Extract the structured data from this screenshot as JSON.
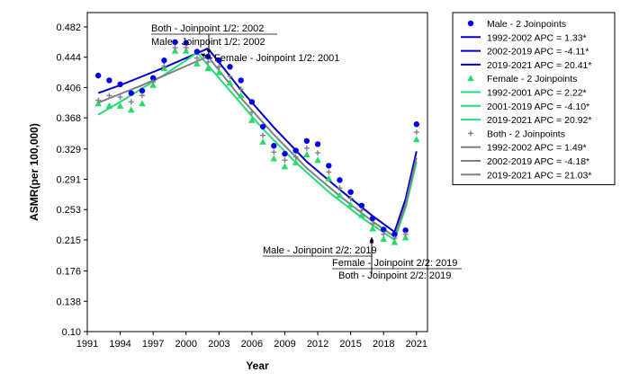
{
  "chart_data": {
    "type": "line",
    "xlabel": "Year",
    "ylabel": "ASMR(per 100,000)",
    "xlim": [
      1991,
      2022
    ],
    "ylim": [
      0.1,
      0.5
    ],
    "x_ticks": [
      "1991",
      "1994",
      "1997",
      "2000",
      "2003",
      "2006",
      "2009",
      "2012",
      "2015",
      "2018",
      "2021"
    ],
    "y_ticks": [
      "0.10",
      "0.138",
      "0.176",
      "0.215",
      "0.253",
      "0.291",
      "0.329",
      "0.368",
      "0.406",
      "0.444",
      "0.482"
    ],
    "grid": false,
    "legend_position": "right",
    "series": [
      {
        "name": "Male - 2 Joinpoints",
        "kind": "points",
        "marker": "circle",
        "color": "#0000ee",
        "points": [
          [
            1992,
            0.421
          ],
          [
            1993,
            0.415
          ],
          [
            1994,
            0.41
          ],
          [
            1995,
            0.399
          ],
          [
            1996,
            0.402
          ],
          [
            1997,
            0.418
          ],
          [
            1998,
            0.44
          ],
          [
            1999,
            0.463
          ],
          [
            2000,
            0.462
          ],
          [
            2001,
            0.451
          ],
          [
            2002,
            0.445
          ],
          [
            2003,
            0.44
          ],
          [
            2004,
            0.432
          ],
          [
            2005,
            0.415
          ],
          [
            2006,
            0.388
          ],
          [
            2007,
            0.357
          ],
          [
            2008,
            0.333
          ],
          [
            2009,
            0.323
          ],
          [
            2010,
            0.327
          ],
          [
            2011,
            0.339
          ],
          [
            2012,
            0.335
          ],
          [
            2013,
            0.308
          ],
          [
            2014,
            0.29
          ],
          [
            2015,
            0.275
          ],
          [
            2016,
            0.258
          ],
          [
            2017,
            0.242
          ],
          [
            2018,
            0.228
          ],
          [
            2019,
            0.222
          ],
          [
            2020,
            0.227
          ],
          [
            2021,
            0.36
          ]
        ]
      },
      {
        "name": "Female - 2 Joinpoints",
        "kind": "points",
        "marker": "triangle",
        "color": "#22dd66",
        "points": [
          [
            1992,
            0.386
          ],
          [
            1993,
            0.383
          ],
          [
            1994,
            0.383
          ],
          [
            1995,
            0.378
          ],
          [
            1996,
            0.386
          ],
          [
            1997,
            0.409
          ],
          [
            1998,
            0.43
          ],
          [
            1999,
            0.452
          ],
          [
            2000,
            0.452
          ],
          [
            2001,
            0.436
          ],
          [
            2002,
            0.43
          ],
          [
            2003,
            0.425
          ],
          [
            2004,
            0.412
          ],
          [
            2005,
            0.396
          ],
          [
            2006,
            0.365
          ],
          [
            2007,
            0.338
          ],
          [
            2008,
            0.317
          ],
          [
            2009,
            0.307
          ],
          [
            2010,
            0.312
          ],
          [
            2011,
            0.322
          ],
          [
            2012,
            0.315
          ],
          [
            2013,
            0.292
          ],
          [
            2014,
            0.271
          ],
          [
            2015,
            0.259
          ],
          [
            2016,
            0.246
          ],
          [
            2017,
            0.229
          ],
          [
            2018,
            0.216
          ],
          [
            2019,
            0.212
          ],
          [
            2020,
            0.218
          ],
          [
            2021,
            0.341
          ]
        ]
      },
      {
        "name": "Both - 2 Joinpoints",
        "kind": "points",
        "marker": "plus",
        "color": "#808080",
        "points": [
          [
            1992,
            0.39
          ],
          [
            1993,
            0.396
          ],
          [
            1994,
            0.394
          ],
          [
            1995,
            0.388
          ],
          [
            1996,
            0.396
          ],
          [
            1997,
            0.413
          ],
          [
            1998,
            0.433
          ],
          [
            1999,
            0.456
          ],
          [
            2000,
            0.456
          ],
          [
            2001,
            0.443
          ],
          [
            2002,
            0.438
          ],
          [
            2003,
            0.432
          ],
          [
            2004,
            0.42
          ],
          [
            2005,
            0.404
          ],
          [
            2006,
            0.375
          ],
          [
            2007,
            0.346
          ],
          [
            2008,
            0.325
          ],
          [
            2009,
            0.315
          ],
          [
            2010,
            0.319
          ],
          [
            2011,
            0.33
          ],
          [
            2012,
            0.324
          ],
          [
            2013,
            0.3
          ],
          [
            2014,
            0.28
          ],
          [
            2015,
            0.267
          ],
          [
            2016,
            0.252
          ],
          [
            2017,
            0.235
          ],
          [
            2018,
            0.222
          ],
          [
            2019,
            0.217
          ],
          [
            2020,
            0.222
          ],
          [
            2021,
            0.35
          ]
        ]
      }
    ],
    "fits": [
      {
        "name": "1992-2002 APC =  1.33*",
        "color": "#0000cc",
        "group": "male",
        "points": [
          [
            1992,
            0.399
          ],
          [
            1994,
            0.409
          ],
          [
            1996,
            0.42
          ],
          [
            1998,
            0.431
          ],
          [
            2000,
            0.443
          ],
          [
            2002,
            0.455
          ]
        ]
      },
      {
        "name": "2002-2019 APC = -4.11*",
        "color": "#0000cc",
        "group": "male",
        "points": [
          [
            2002,
            0.455
          ],
          [
            2005,
            0.403
          ],
          [
            2008,
            0.356
          ],
          [
            2011,
            0.313
          ],
          [
            2014,
            0.278
          ],
          [
            2017,
            0.245
          ],
          [
            2019,
            0.225
          ]
        ]
      },
      {
        "name": "2019-2021 APC = 20.41*",
        "color": "#0000cc",
        "group": "male",
        "points": [
          [
            2019,
            0.225
          ],
          [
            2020,
            0.266
          ],
          [
            2021,
            0.326
          ]
        ]
      },
      {
        "name": "1992-2001 APC =  2.22*",
        "color": "#22dd77",
        "group": "female",
        "points": [
          [
            1992,
            0.372
          ],
          [
            1994,
            0.388
          ],
          [
            1996,
            0.405
          ],
          [
            1998,
            0.422
          ],
          [
            2000,
            0.44
          ],
          [
            2001,
            0.45
          ]
        ]
      },
      {
        "name": "2001-2019 APC = -4.10*",
        "color": "#22dd77",
        "group": "female",
        "points": [
          [
            2001,
            0.45
          ],
          [
            2004,
            0.402
          ],
          [
            2007,
            0.354
          ],
          [
            2010,
            0.312
          ],
          [
            2013,
            0.275
          ],
          [
            2016,
            0.243
          ],
          [
            2019,
            0.215
          ]
        ]
      },
      {
        "name": "2019-2021 APC = 20.92*",
        "color": "#22dd77",
        "group": "female",
        "points": [
          [
            2019,
            0.215
          ],
          [
            2020,
            0.255
          ],
          [
            2021,
            0.313
          ]
        ]
      },
      {
        "name": "1992-2002 APC =  1.49*",
        "color": "#808080",
        "group": "both",
        "points": [
          [
            1992,
            0.387
          ],
          [
            1994,
            0.398
          ],
          [
            1996,
            0.409
          ],
          [
            1998,
            0.421
          ],
          [
            2000,
            0.433
          ],
          [
            2002,
            0.445
          ]
        ]
      },
      {
        "name": "2002-2019 APC = -4.18*",
        "color": "#808080",
        "group": "both",
        "points": [
          [
            2002,
            0.445
          ],
          [
            2005,
            0.393
          ],
          [
            2008,
            0.347
          ],
          [
            2011,
            0.305
          ],
          [
            2014,
            0.27
          ],
          [
            2017,
            0.238
          ],
          [
            2019,
            0.219
          ]
        ]
      },
      {
        "name": "2019-2021 APC = 21.03*",
        "color": "#808080",
        "group": "both",
        "points": [
          [
            2019,
            0.219
          ],
          [
            2020,
            0.259
          ],
          [
            2021,
            0.318
          ]
        ]
      }
    ],
    "annotations": [
      {
        "text": "Both - Joinpoint 1/2:  2002",
        "x": 2002,
        "y": 0.455,
        "underline": true
      },
      {
        "text": "Male - Joinpoint 1/2:  2002",
        "x": 2002,
        "y": 0.455,
        "underline": false
      },
      {
        "text": "Female - Joinpoint 1/2:  2001",
        "x": 2001,
        "y": 0.45,
        "underline": false
      },
      {
        "text": "Male - Joinpoint 2/2:  2019",
        "x": 2019,
        "y": 0.222,
        "underline": true
      },
      {
        "text": "Female - Joinpoint 2/2:  2019",
        "x": 2019,
        "y": 0.215,
        "underline": true
      },
      {
        "text": "Both - Joinpoint 2/2:  2019",
        "x": 2019,
        "y": 0.219,
        "underline": false
      }
    ]
  },
  "legend": [
    {
      "label": "Male - 2 Joinpoints",
      "kind": "circle",
      "color": "#0000ee"
    },
    {
      "label": "1992-2002 APC  =  1.33*",
      "kind": "line",
      "color": "#0000cc"
    },
    {
      "label": "2002-2019 APC  = -4.11*",
      "kind": "line",
      "color": "#0000cc"
    },
    {
      "label": "2019-2021 APC  = 20.41*",
      "kind": "line",
      "color": "#0000cc"
    },
    {
      "label": "Female - 2 Joinpoints",
      "kind": "triangle",
      "color": "#22dd66"
    },
    {
      "label": "1992-2001 APC  =  2.22*",
      "kind": "line",
      "color": "#22dd77"
    },
    {
      "label": "2001-2019 APC  = -4.10*",
      "kind": "line",
      "color": "#22dd77"
    },
    {
      "label": "2019-2021 APC  = 20.92*",
      "kind": "line",
      "color": "#22dd77"
    },
    {
      "label": "Both - 2 Joinpoints",
      "kind": "plus",
      "color": "#808080"
    },
    {
      "label": "1992-2002 APC  =  1.49*",
      "kind": "line",
      "color": "#808080"
    },
    {
      "label": "2002-2019 APC  = -4.18*",
      "kind": "line",
      "color": "#808080"
    },
    {
      "label": "2019-2021 APC  = 21.03*",
      "kind": "line",
      "color": "#808080"
    }
  ]
}
